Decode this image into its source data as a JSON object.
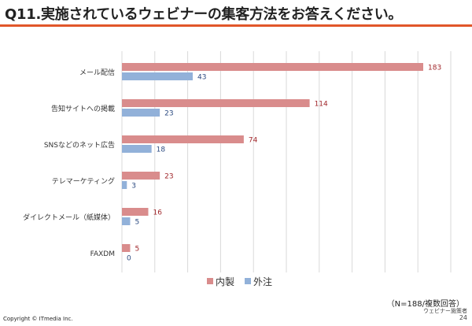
{
  "title": "Q11.実施されているウェビナーの集客方法をお答えください。",
  "accent_color": "#e1572a",
  "chart_data": {
    "type": "bar",
    "orientation": "horizontal",
    "categories": [
      "メール配信",
      "告知サイトへの掲載",
      "SNSなどのネット広告",
      "テレマーケティング",
      "ダイレクトメール（紙媒体）",
      "FAXDM"
    ],
    "series": [
      {
        "name": "内製",
        "values": [
          183,
          114,
          74,
          23,
          16,
          5
        ],
        "color": "#d98c8c",
        "label_color": "#a0262a"
      },
      {
        "name": "外注",
        "values": [
          43,
          23,
          18,
          3,
          5,
          0
        ],
        "color": "#92b1d9",
        "label_color": "#2b4a80"
      }
    ],
    "xlim": [
      0,
      183
    ],
    "legend_position": "bottom",
    "grid": true,
    "note": "（N=188/複数回答）"
  },
  "footer": {
    "copyright": "Copyright © ITmedia Inc.",
    "publisher": "ウェビナー施策者",
    "page_number": "24"
  }
}
